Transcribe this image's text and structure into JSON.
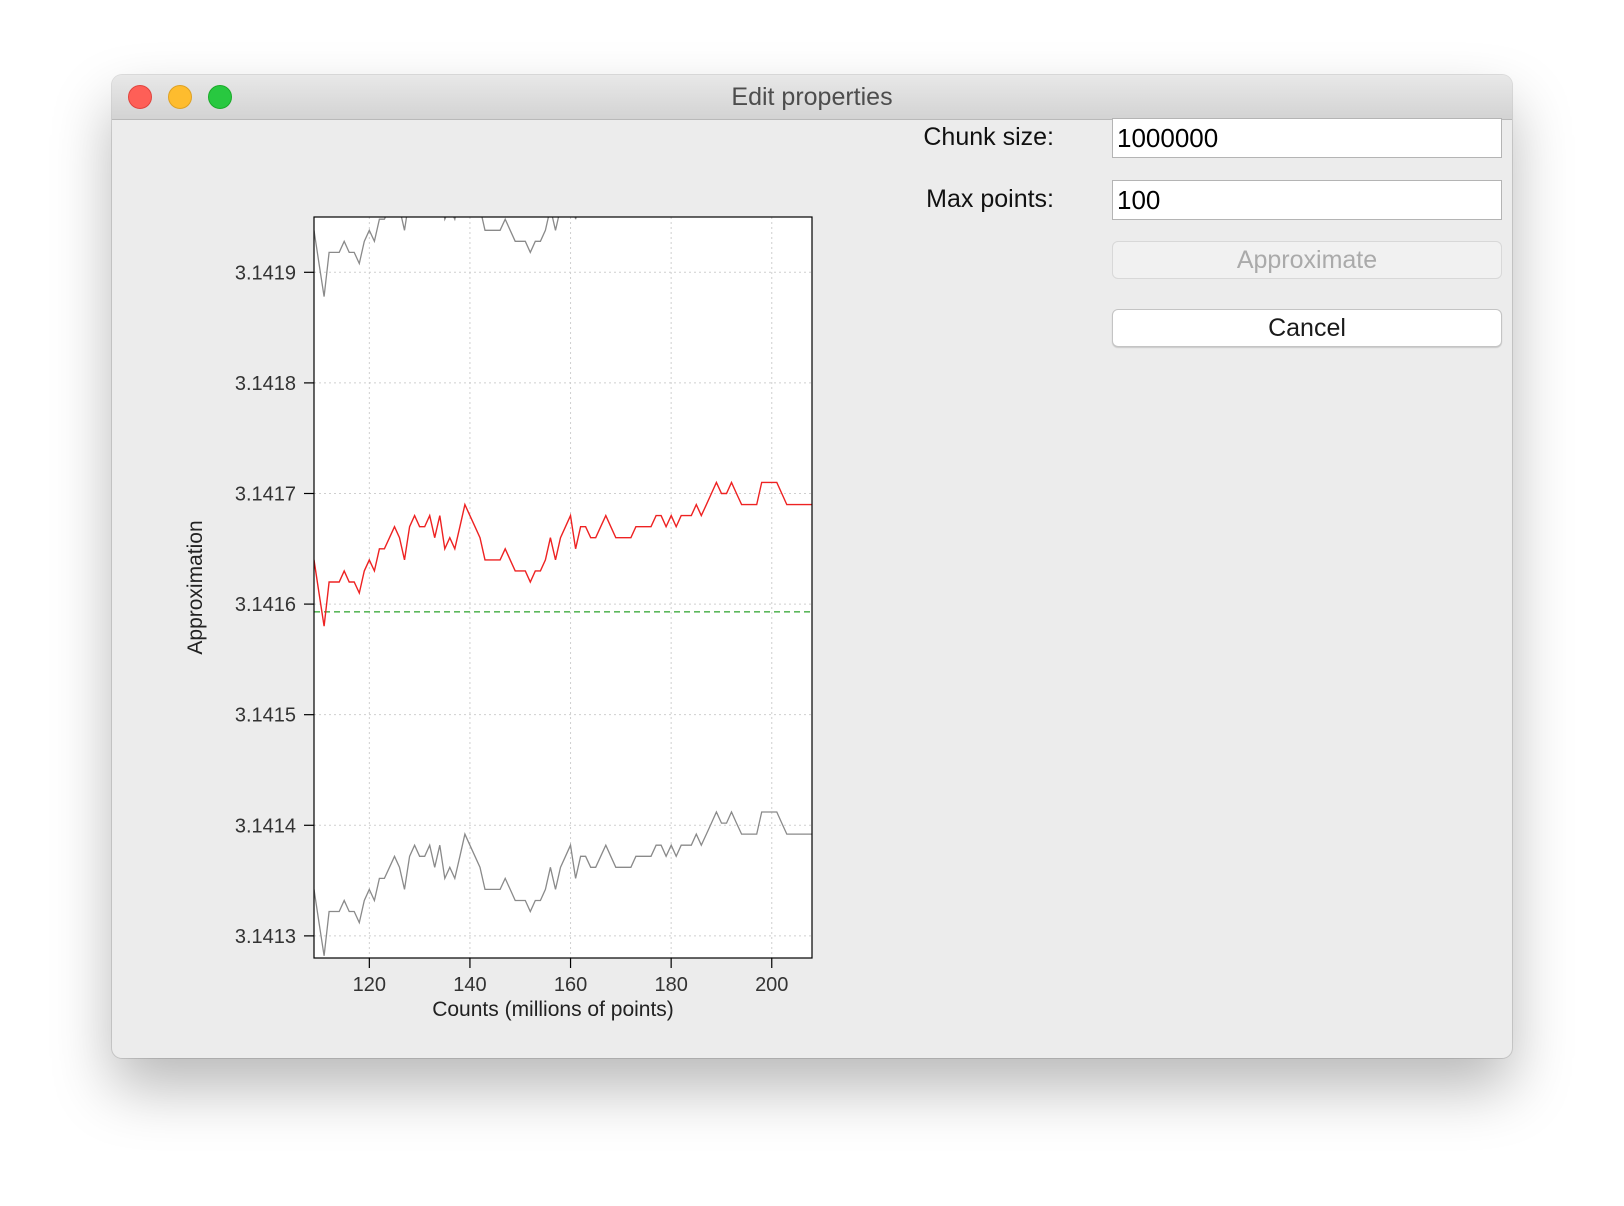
{
  "window": {
    "title": "Edit properties"
  },
  "form": {
    "chunk_size_label": "Chunk size:",
    "chunk_size_value": "1000000",
    "max_points_label": "Max points:",
    "max_points_value": "100",
    "approximate_label": "Approximate",
    "cancel_label": "Cancel"
  },
  "chart_data": {
    "type": "line",
    "title": "",
    "xlabel": "Counts (millions of points)",
    "ylabel": "Approximation",
    "xlim": [
      109,
      208
    ],
    "ylim": [
      3.14128,
      3.14195
    ],
    "xticks": [
      120,
      140,
      160,
      180,
      200
    ],
    "xtick_labels": [
      "120",
      "140",
      "160",
      "180",
      "200"
    ],
    "yticks": [
      3.1413,
      3.1414,
      3.1415,
      3.1416,
      3.1417,
      3.1418,
      3.1419
    ],
    "ytick_labels": [
      "3.1413",
      "3.1414",
      "3.1415",
      "3.1416",
      "3.1417",
      "3.1418",
      "3.1419"
    ],
    "grid": true,
    "reference_line": {
      "y": 3.141593,
      "color": "#5cb85c",
      "style": "dashed"
    },
    "band_offset": 0.000298,
    "x": [
      109,
      110,
      111,
      112,
      113,
      114,
      115,
      116,
      117,
      118,
      119,
      120,
      121,
      122,
      123,
      124,
      125,
      126,
      127,
      128,
      129,
      130,
      131,
      132,
      133,
      134,
      135,
      136,
      137,
      138,
      139,
      140,
      141,
      142,
      143,
      144,
      145,
      146,
      147,
      148,
      149,
      150,
      151,
      152,
      153,
      154,
      155,
      156,
      157,
      158,
      159,
      160,
      161,
      162,
      163,
      164,
      165,
      166,
      167,
      168,
      169,
      170,
      171,
      172,
      173,
      174,
      175,
      176,
      177,
      178,
      179,
      180,
      181,
      182,
      183,
      184,
      185,
      186,
      187,
      188,
      189,
      190,
      191,
      192,
      193,
      194,
      195,
      196,
      197,
      198,
      199,
      200,
      201,
      202,
      203,
      204,
      205,
      206,
      207,
      208
    ],
    "series": [
      {
        "name": "",
        "color": "#ee2222",
        "values": [
          3.14164,
          3.14161,
          3.14158,
          3.14162,
          3.14162,
          3.14162,
          3.14163,
          3.14162,
          3.14162,
          3.14161,
          3.14163,
          3.14164,
          3.14163,
          3.14165,
          3.14165,
          3.14166,
          3.14167,
          3.14166,
          3.14164,
          3.14167,
          3.14168,
          3.14167,
          3.14167,
          3.14168,
          3.14166,
          3.14168,
          3.14165,
          3.14166,
          3.14165,
          3.14167,
          3.14169,
          3.14168,
          3.14167,
          3.14166,
          3.14164,
          3.14164,
          3.14164,
          3.14164,
          3.14165,
          3.14164,
          3.14163,
          3.14163,
          3.14163,
          3.14162,
          3.14163,
          3.14163,
          3.14164,
          3.14166,
          3.14164,
          3.14166,
          3.14167,
          3.14168,
          3.14165,
          3.14167,
          3.14167,
          3.14166,
          3.14166,
          3.14167,
          3.14168,
          3.14167,
          3.14166,
          3.14166,
          3.14166,
          3.14166,
          3.14167,
          3.14167,
          3.14167,
          3.14167,
          3.14168,
          3.14168,
          3.14167,
          3.14168,
          3.14167,
          3.14168,
          3.14168,
          3.14168,
          3.14169,
          3.14168,
          3.14169,
          3.1417,
          3.14171,
          3.1417,
          3.1417,
          3.14171,
          3.1417,
          3.14169,
          3.14169,
          3.14169,
          3.14169,
          3.14171,
          3.14171,
          3.14171,
          3.14171,
          3.1417,
          3.14169,
          3.14169,
          3.14169,
          3.14169,
          3.14169,
          3.14169
        ]
      }
    ]
  }
}
